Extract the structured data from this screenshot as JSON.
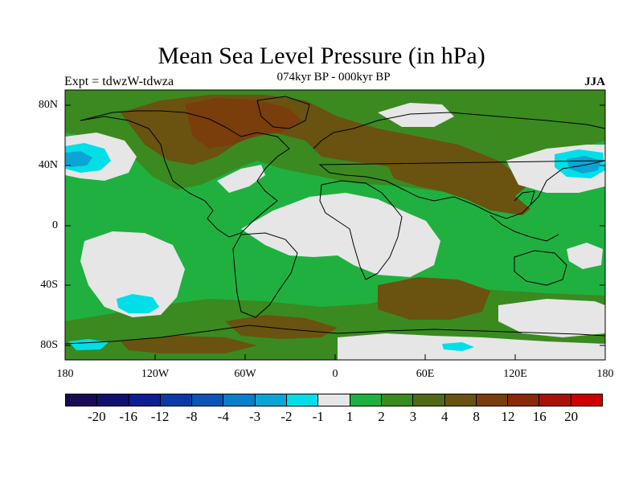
{
  "title": "Mean Sea Level Pressure (in hPa)",
  "subtitle": "074kyr BP - 000kyr BP",
  "experiment": "Expt = tdwzW-tdwza",
  "season": "JJA",
  "lat_labels": [
    "80N",
    "40N",
    "0",
    "40S",
    "80S"
  ],
  "lon_labels": [
    "180",
    "120W",
    "60W",
    "0",
    "60E",
    "120E",
    "180"
  ],
  "colorbar": {
    "colors": [
      "#1a0a55",
      "#111070",
      "#0d1f90",
      "#0a3aa5",
      "#0a55b5",
      "#0a7ec8",
      "#0aa5d5",
      "#00dfe8",
      "#e6e6e6",
      "#20b040",
      "#3a8a20",
      "#4f6a12",
      "#6a5210",
      "#7a3d0c",
      "#8a2808",
      "#a81204",
      "#cc0000"
    ],
    "labels": [
      "-20",
      "-16",
      "-12",
      "-8",
      "-4",
      "-3",
      "-2",
      "-1",
      "1",
      "2",
      "3",
      "4",
      "8",
      "12",
      "16",
      "20"
    ]
  },
  "field_colors": {
    "land_green": "#20b040",
    "olive": "#3a8a20",
    "brown": "#6a5210",
    "dark_brown": "#7a3d0c",
    "light_gray": "#e6e6e6",
    "cyan": "#00dfe8",
    "blue": "#0aa5d5"
  }
}
